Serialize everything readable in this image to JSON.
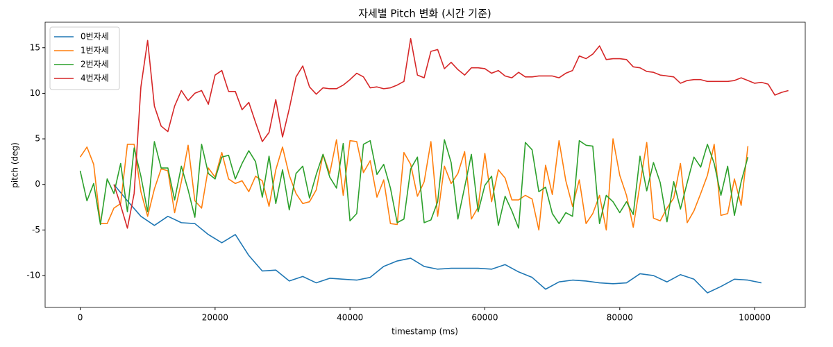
{
  "chart_data": {
    "type": "line",
    "title": "자세별 Pitch 변화 (시간 기준)",
    "x_label": "timestamp (ms)",
    "y_label": "pitch (deg)",
    "xlim": [
      -5200,
      107500
    ],
    "ylim": [
      -13.5,
      17.8
    ],
    "xticks": [
      0,
      20000,
      40000,
      60000,
      80000,
      100000
    ],
    "yticks": [
      -10,
      -5,
      0,
      5,
      10,
      15
    ],
    "grid": false,
    "legend": "upper left",
    "series": [
      {
        "name": "0번자세",
        "color": "#1f77b4",
        "x": [
          5000,
          7000,
          9000,
          11000,
          13000,
          15000,
          17000,
          19000,
          21000,
          23000,
          25000,
          27000,
          29000,
          31000,
          33000,
          35000,
          37000,
          39000,
          41000,
          43000,
          45000,
          47000,
          49000,
          51000,
          53000,
          55000,
          57000,
          59000,
          61000,
          63000,
          65000,
          67000,
          69000,
          71000,
          73000,
          75000,
          77000,
          79000,
          81000,
          83000,
          85000,
          87000,
          89000,
          91000,
          93000,
          95000,
          97000,
          99000,
          101000
        ],
        "values": [
          0,
          -1.8,
          -3.5,
          -4.5,
          -3.5,
          -4.2,
          -4.3,
          -5.5,
          -6.4,
          -5.5,
          -7.8,
          -9.5,
          -9.4,
          -10.6,
          -10.1,
          -10.8,
          -10.3,
          -10.4,
          -10.5,
          -10.2,
          -9.0,
          -8.4,
          -8.1,
          -9.0,
          -9.3,
          -9.2,
          -9.2,
          -9.2,
          -9.3,
          -8.8,
          -9.6,
          -10.2,
          -11.5,
          -10.7,
          -10.5,
          -10.6,
          -10.8,
          -10.9,
          -10.8,
          -9.8,
          -10.0,
          -10.7,
          -9.9,
          -10.4,
          -11.9,
          -11.2,
          -10.4,
          -10.5,
          -10.8
        ]
      },
      {
        "name": "1번자세",
        "color": "#ff7f0e",
        "x": [
          0,
          1000,
          2000,
          3000,
          4000,
          5000,
          6000,
          7000,
          8000,
          9000,
          10000,
          11000,
          12000,
          13000,
          14000,
          15000,
          16000,
          17000,
          18000,
          19000,
          20000,
          21000,
          22000,
          23000,
          24000,
          25000,
          26000,
          27000,
          28000,
          29000,
          30000,
          31000,
          32000,
          33000,
          34000,
          35000,
          36000,
          37000,
          38000,
          39000,
          40000,
          41000,
          42000,
          43000,
          44000,
          45000,
          46000,
          47000,
          48000,
          49000,
          50000,
          51000,
          52000,
          53000,
          54000,
          55000,
          56000,
          57000,
          58000,
          59000,
          60000,
          61000,
          62000,
          63000,
          64000,
          65000,
          66000,
          67000,
          68000,
          69000,
          70000,
          71000,
          72000,
          73000,
          74000,
          75000,
          76000,
          77000,
          78000,
          79000,
          80000,
          81000,
          82000,
          83000,
          84000,
          85000,
          86000,
          87000,
          88000,
          89000,
          90000,
          91000,
          92000,
          93000,
          94000,
          95000,
          96000,
          97000,
          98000,
          99000
        ],
        "values": [
          3.0,
          4.1,
          2.2,
          -4.3,
          -4.3,
          -2.6,
          -2.1,
          4.4,
          4.4,
          -0.8,
          -3.5,
          -0.5,
          1.7,
          1.5,
          -3.1,
          0.3,
          4.3,
          -1.8,
          -2.6,
          1.8,
          0.8,
          3.5,
          0.6,
          0.1,
          0.4,
          -0.8,
          0.9,
          0.4,
          -2.4,
          1.6,
          4.1,
          1.0,
          -1.0,
          -2.1,
          -1.9,
          -0.6,
          3.3,
          1.2,
          4.9,
          -1.2,
          4.8,
          4.7,
          1.3,
          2.6,
          -1.4,
          0.5,
          -4.3,
          -4.4,
          3.5,
          2.2,
          -1.3,
          0.3,
          4.7,
          -3.5,
          2.0,
          0.1,
          1.2,
          3.6,
          -3.8,
          -2.5,
          3.4,
          -1.9,
          1.6,
          0.7,
          -1.7,
          -1.7,
          -1.2,
          -1.6,
          -5.0,
          2.1,
          -1.1,
          4.8,
          0.4,
          -2.4,
          0.5,
          -4.3,
          -3.2,
          -1.2,
          -5.0,
          5.0,
          1.0,
          -1.2,
          -4.7,
          0.0,
          4.6,
          -3.7,
          -4.0,
          -2.6,
          -1.5,
          2.3,
          -4.2,
          -2.9,
          -1.0,
          1.0,
          4.4,
          -3.4,
          -3.2,
          0.6,
          -2.3,
          4.2
        ]
      },
      {
        "name": "2번자세",
        "color": "#2ca02c",
        "x": [
          0,
          1000,
          2000,
          3000,
          4000,
          5000,
          6000,
          7000,
          8000,
          9000,
          10000,
          11000,
          12000,
          13000,
          14000,
          15000,
          16000,
          17000,
          18000,
          19000,
          20000,
          21000,
          22000,
          23000,
          24000,
          25000,
          26000,
          27000,
          28000,
          29000,
          30000,
          31000,
          32000,
          33000,
          34000,
          35000,
          36000,
          37000,
          38000,
          39000,
          40000,
          41000,
          42000,
          43000,
          44000,
          45000,
          46000,
          47000,
          48000,
          49000,
          50000,
          51000,
          52000,
          53000,
          54000,
          55000,
          56000,
          57000,
          58000,
          59000,
          60000,
          61000,
          62000,
          63000,
          64000,
          65000,
          66000,
          67000,
          68000,
          69000,
          70000,
          71000,
          72000,
          73000,
          74000,
          75000,
          76000,
          77000,
          78000,
          79000,
          80000,
          81000,
          82000,
          83000,
          84000,
          85000,
          86000,
          87000,
          88000,
          89000,
          90000,
          91000,
          92000,
          93000,
          94000,
          95000,
          96000,
          97000,
          98000,
          99000
        ],
        "values": [
          1.5,
          -1.8,
          0.1,
          -4.4,
          0.6,
          -1.0,
          2.3,
          -3.0,
          4.0,
          0.9,
          -3.0,
          4.7,
          1.8,
          1.8,
          -1.7,
          2.0,
          -0.6,
          -3.6,
          4.4,
          1.2,
          0.6,
          3.0,
          3.2,
          0.6,
          2.3,
          3.7,
          2.5,
          -1.4,
          3.1,
          -2.1,
          1.6,
          -2.8,
          1.2,
          2.0,
          -1.5,
          1.1,
          3.3,
          0.8,
          -0.4,
          4.5,
          -4.0,
          -3.2,
          4.4,
          4.8,
          1.1,
          2.2,
          -0.4,
          -4.2,
          -3.8,
          1.7,
          3.0,
          -4.2,
          -3.9,
          -1.9,
          4.9,
          2.4,
          -3.8,
          -0.3,
          3.3,
          -3.0,
          -0.1,
          0.9,
          -4.5,
          -1.3,
          -2.9,
          -4.8,
          4.6,
          3.8,
          -0.8,
          -0.3,
          -3.2,
          -4.3,
          -3.1,
          -3.5,
          4.8,
          4.3,
          4.2,
          -4.3,
          -1.2,
          -1.9,
          -3.1,
          -1.9,
          -3.3,
          3.1,
          -0.7,
          2.4,
          0.2,
          -4.1,
          0.3,
          -2.7,
          0.2,
          3.0,
          1.9,
          4.4,
          2.3,
          -1.2,
          2.0,
          -3.4,
          0.3,
          3.0
        ]
      },
      {
        "name": "4번자세",
        "color": "#d62728",
        "x": [
          5000,
          6000,
          7000,
          8000,
          9000,
          10000,
          11000,
          12000,
          13000,
          14000,
          15000,
          16000,
          17000,
          18000,
          19000,
          20000,
          21000,
          22000,
          23000,
          24000,
          25000,
          26000,
          27000,
          28000,
          29000,
          30000,
          31000,
          32000,
          33000,
          34000,
          35000,
          36000,
          37000,
          38000,
          39000,
          40000,
          41000,
          42000,
          43000,
          44000,
          45000,
          46000,
          47000,
          48000,
          49000,
          50000,
          51000,
          52000,
          53000,
          54000,
          55000,
          56000,
          57000,
          58000,
          59000,
          60000,
          61000,
          62000,
          63000,
          64000,
          65000,
          66000,
          67000,
          68000,
          69000,
          70000,
          71000,
          72000,
          73000,
          74000,
          75000,
          76000,
          77000,
          78000,
          79000,
          80000,
          81000,
          82000,
          83000,
          84000,
          85000,
          86000,
          87000,
          88000,
          89000,
          90000,
          91000,
          92000,
          93000,
          94000,
          95000,
          96000,
          97000,
          98000,
          99000,
          100000,
          101000,
          102000,
          103000,
          104000,
          105000
        ],
        "values": [
          0,
          -2.3,
          -4.8,
          -1.0,
          10.7,
          15.8,
          8.6,
          6.4,
          5.8,
          8.6,
          10.3,
          9.2,
          10.0,
          10.3,
          8.8,
          12.0,
          12.5,
          10.2,
          10.2,
          8.2,
          9.0,
          6.8,
          4.7,
          5.7,
          9.3,
          5.2,
          8.3,
          11.8,
          13.0,
          10.7,
          9.9,
          10.6,
          10.5,
          10.5,
          10.9,
          11.5,
          12.2,
          11.8,
          10.6,
          10.7,
          10.5,
          10.6,
          10.9,
          11.3,
          16.0,
          12.0,
          11.7,
          14.6,
          14.8,
          12.7,
          13.4,
          12.6,
          12.0,
          12.8,
          12.8,
          12.7,
          12.2,
          12.5,
          11.9,
          11.7,
          12.3,
          11.8,
          11.8,
          11.9,
          11.9,
          11.9,
          11.7,
          12.2,
          12.5,
          14.1,
          13.8,
          14.3,
          15.2,
          13.7,
          13.8,
          13.8,
          13.7,
          12.9,
          12.8,
          12.4,
          12.3,
          12.0,
          11.9,
          11.8,
          11.1,
          11.4,
          11.5,
          11.5,
          11.3,
          11.3,
          11.3,
          11.3,
          11.4,
          11.7,
          11.4,
          11.1,
          11.2,
          11.0,
          9.8,
          10.1,
          10.3
        ]
      }
    ]
  }
}
